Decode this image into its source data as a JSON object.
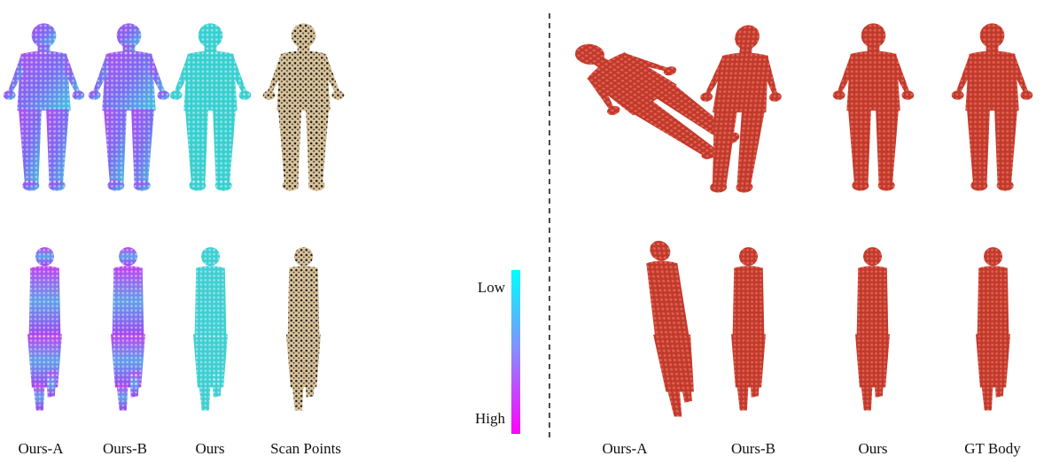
{
  "left_panel": {
    "labels": [
      "Ours-A",
      "Ours-B",
      "Ours",
      "Scan Points"
    ],
    "colorbar": {
      "low": "Low",
      "high": "High"
    }
  },
  "right_panel": {
    "labels": [
      "Ours-A",
      "Ours-B",
      "Ours",
      "GT Body"
    ]
  }
}
